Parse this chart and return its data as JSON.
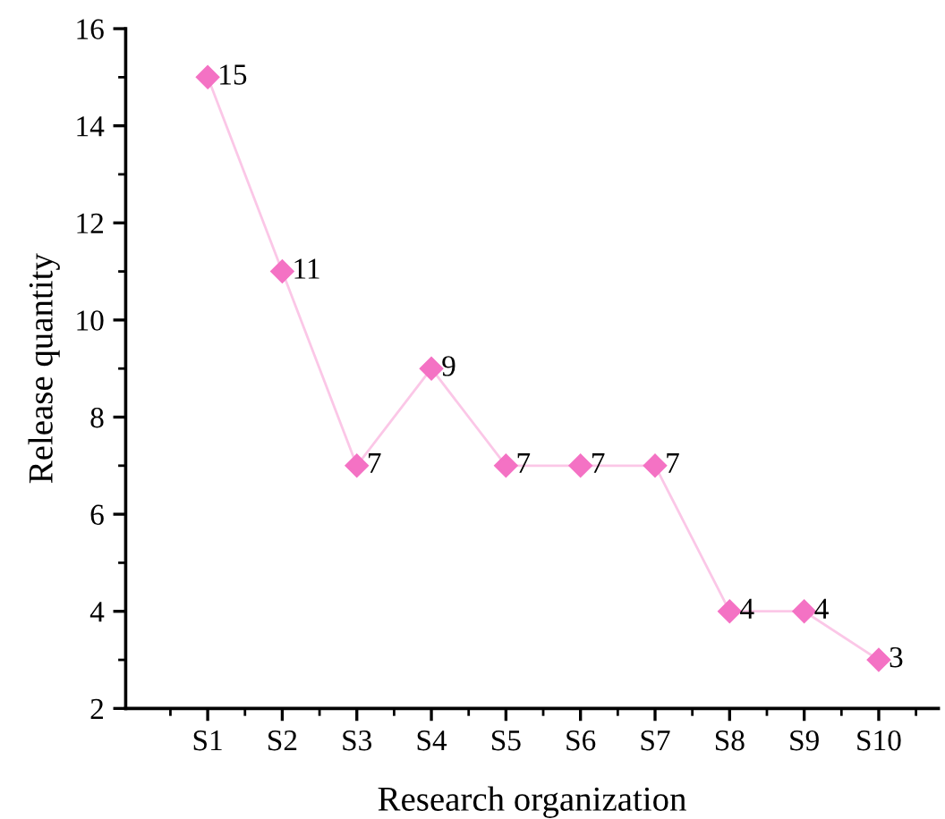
{
  "chart_data": {
    "type": "line",
    "xlabel": "Research organization",
    "ylabel": "Release quantity",
    "categories": [
      "S1",
      "S2",
      "S3",
      "S4",
      "S5",
      "S6",
      "S7",
      "S8",
      "S9",
      "S10"
    ],
    "series": [
      {
        "color": "#f472c4",
        "values": [
          15,
          11,
          7,
          9,
          7,
          7,
          7,
          4,
          4,
          3
        ]
      }
    ],
    "ylim": [
      2,
      16
    ],
    "yticks": [
      2,
      4,
      6,
      8,
      10,
      12,
      14,
      16
    ],
    "marker": "diamond",
    "line_style": "solid",
    "data_labels": true,
    "grid": false,
    "legend": false
  }
}
